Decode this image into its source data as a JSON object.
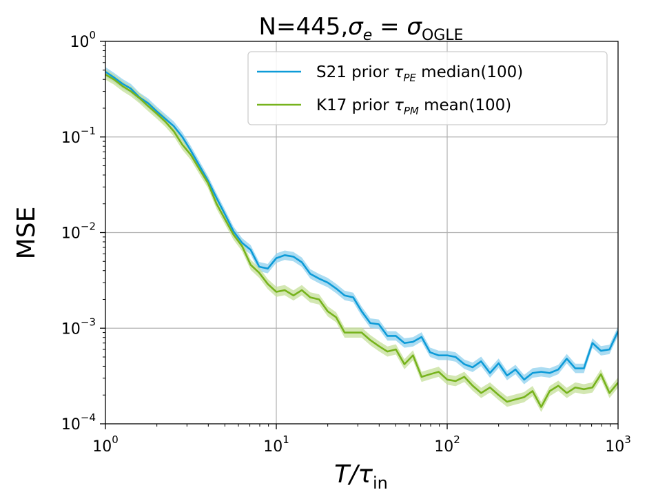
{
  "chart_data": {
    "type": "line",
    "title_main": "N=445,",
    "title_sym": "σ",
    "title_sym_sub": "e",
    "title_eq": " = ",
    "title_sym2": "σ",
    "title_sym2_sub": "OGLE",
    "xlabel_main": "T/τ",
    "xlabel_sub": "in",
    "ylabel": "MSE",
    "x_scale": "log",
    "y_scale": "log",
    "xlim": [
      1,
      1000
    ],
    "ylim": [
      0.0001,
      1
    ],
    "grid": true,
    "legend_position": "top-right",
    "x_ticks": [
      {
        "base": "10",
        "exp": "0",
        "value": 1
      },
      {
        "base": "10",
        "exp": "1",
        "value": 10
      },
      {
        "base": "10",
        "exp": "2",
        "value": 100
      },
      {
        "base": "10",
        "exp": "3",
        "value": 1000
      }
    ],
    "y_ticks": [
      {
        "base": "10",
        "exp": "−4",
        "value": 0.0001
      },
      {
        "base": "10",
        "exp": "−3",
        "value": 0.001
      },
      {
        "base": "10",
        "exp": "−2",
        "value": 0.01
      },
      {
        "base": "10",
        "exp": "−1",
        "value": 0.1
      },
      {
        "base": "10",
        "exp": "0",
        "value": 1
      }
    ],
    "series": [
      {
        "name": "S21 prior τPE median(100)",
        "legend_pre": "S21 prior ",
        "legend_sym": "τ",
        "legend_sub": "PE",
        "legend_post": " median(100)",
        "color": "#0d9bd8",
        "band_color": "#8fd0ee",
        "band_rel": 0.12,
        "x": [
          1,
          1.12,
          1.26,
          1.41,
          1.58,
          1.78,
          2.0,
          2.24,
          2.51,
          2.82,
          3.16,
          3.55,
          3.98,
          4.47,
          5.01,
          5.62,
          6.31,
          7.08,
          7.94,
          8.91,
          10.0,
          11.2,
          12.6,
          14.1,
          15.8,
          17.8,
          20.0,
          22.4,
          25.1,
          28.2,
          31.6,
          35.5,
          39.8,
          44.7,
          50.1,
          56.2,
          63.1,
          70.8,
          79.4,
          89.1,
          100,
          112,
          126,
          141,
          158,
          178,
          200,
          224,
          251,
          282,
          316,
          355,
          398,
          447,
          501,
          562,
          631,
          708,
          794,
          891,
          1000
        ],
        "y": [
          0.48,
          0.42,
          0.36,
          0.32,
          0.26,
          0.225,
          0.185,
          0.155,
          0.13,
          0.1,
          0.072,
          0.05,
          0.035,
          0.023,
          0.0155,
          0.0103,
          0.0078,
          0.0066,
          0.0044,
          0.0042,
          0.0054,
          0.0058,
          0.0056,
          0.0049,
          0.0037,
          0.0033,
          0.003,
          0.0026,
          0.0022,
          0.0021,
          0.0015,
          0.00113,
          0.0011,
          0.00083,
          0.00083,
          0.0007,
          0.00072,
          0.00081,
          0.00056,
          0.00052,
          0.00052,
          0.0005,
          0.00042,
          0.00039,
          0.00045,
          0.00034,
          0.00043,
          0.00032,
          0.00037,
          0.00029,
          0.00034,
          0.00035,
          0.00034,
          0.00037,
          0.00048,
          0.00038,
          0.00038,
          0.0007,
          0.00058,
          0.0006,
          0.00093
        ]
      },
      {
        "name": "K17 prior τPM mean(100)",
        "legend_pre": "K17 prior ",
        "legend_sym": "τ",
        "legend_sub": "PM",
        "legend_post": " mean(100)",
        "color": "#77b31d",
        "band_color": "#c4df98",
        "band_rel": 0.13,
        "x": [
          1,
          1.12,
          1.26,
          1.41,
          1.58,
          1.78,
          2.0,
          2.24,
          2.51,
          2.82,
          3.16,
          3.55,
          3.98,
          4.47,
          5.01,
          5.62,
          6.31,
          7.08,
          7.94,
          8.91,
          10.0,
          11.2,
          12.6,
          14.1,
          15.8,
          17.8,
          20.0,
          22.4,
          25.1,
          28.2,
          31.6,
          35.5,
          39.8,
          44.7,
          50.1,
          56.2,
          63.1,
          70.8,
          79.4,
          89.1,
          100,
          112,
          126,
          141,
          158,
          178,
          200,
          224,
          251,
          282,
          316,
          355,
          398,
          447,
          501,
          562,
          631,
          708,
          794,
          891,
          1000
        ],
        "y": [
          0.45,
          0.4,
          0.34,
          0.3,
          0.255,
          0.21,
          0.175,
          0.145,
          0.115,
          0.083,
          0.065,
          0.046,
          0.033,
          0.02,
          0.0138,
          0.0095,
          0.0072,
          0.0046,
          0.0038,
          0.0029,
          0.0024,
          0.0025,
          0.0022,
          0.0025,
          0.0021,
          0.002,
          0.0015,
          0.0013,
          0.0009,
          0.0009,
          0.0009,
          0.00075,
          0.00065,
          0.00057,
          0.0006,
          0.00042,
          0.00052,
          0.00031,
          0.00033,
          0.00035,
          0.00029,
          0.00028,
          0.00031,
          0.00025,
          0.00021,
          0.00024,
          0.0002,
          0.00017,
          0.00018,
          0.00019,
          0.00022,
          0.00015,
          0.00022,
          0.00025,
          0.00021,
          0.00024,
          0.00023,
          0.00024,
          0.00033,
          0.00021,
          0.00027
        ]
      }
    ]
  }
}
